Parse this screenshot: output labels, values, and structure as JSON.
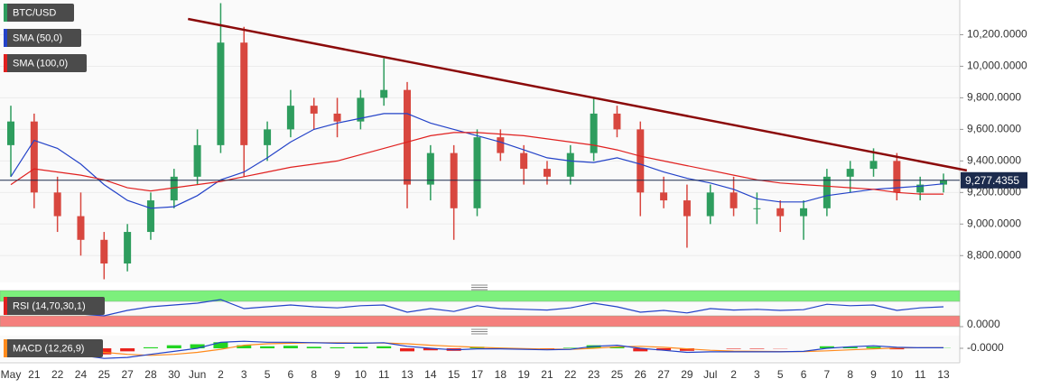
{
  "chart_data": [
    {
      "type": "candlestick",
      "name": "BTC/USD",
      "categories": [
        "May",
        "21",
        "22",
        "24",
        "25",
        "27",
        "28",
        "30",
        "Jun",
        "2",
        "3",
        "5",
        "6",
        "8",
        "9",
        "10",
        "11",
        "13",
        "14",
        "15",
        "17",
        "18",
        "19",
        "21",
        "22",
        "23",
        "25",
        "26",
        "27",
        "29",
        "Jul",
        "2",
        "3",
        "5",
        "6",
        "7",
        "8",
        "9",
        "10",
        "11",
        "13"
      ],
      "open": [
        9500,
        9650,
        9200,
        9050,
        8900,
        8750,
        8950,
        9150,
        9300,
        9500,
        10150,
        9500,
        9600,
        9750,
        9700,
        9650,
        9800,
        9850,
        9250,
        9450,
        9100,
        9550,
        9450,
        9350,
        9300,
        9450,
        9700,
        9600,
        9200,
        9150,
        9050,
        9200,
        9100,
        9100,
        9050,
        9100,
        9300,
        9350,
        9400,
        9200,
        9250
      ],
      "high": [
        9750,
        9700,
        9300,
        9200,
        8950,
        9000,
        9200,
        9350,
        9600,
        10400,
        10250,
        9650,
        9850,
        9800,
        9800,
        9850,
        10050,
        9900,
        9500,
        9500,
        9600,
        9600,
        9500,
        9400,
        9500,
        9800,
        9750,
        9650,
        9300,
        9250,
        9250,
        9300,
        9200,
        9150,
        9150,
        9350,
        9400,
        9480,
        9450,
        9300,
        9320
      ],
      "low": [
        9300,
        9100,
        8950,
        8800,
        8650,
        8700,
        8900,
        9100,
        9250,
        9450,
        9300,
        9400,
        9550,
        9600,
        9550,
        9600,
        9750,
        9100,
        9150,
        8900,
        9050,
        9400,
        9250,
        9250,
        9250,
        9400,
        9550,
        9050,
        9100,
        8850,
        9000,
        9050,
        9000,
        8950,
        8900,
        9050,
        9200,
        9300,
        9150,
        9150,
        9200
      ],
      "close": [
        9650,
        9200,
        9050,
        8900,
        8750,
        8950,
        9150,
        9300,
        9500,
        10150,
        9500,
        9600,
        9750,
        9700,
        9650,
        9800,
        9850,
        9250,
        9450,
        9100,
        9550,
        9450,
        9350,
        9300,
        9450,
        9700,
        9600,
        9200,
        9150,
        9050,
        9200,
        9100,
        9100,
        9050,
        9100,
        9300,
        9350,
        9400,
        9200,
        9250,
        9277
      ],
      "up_color": "#2e9d5e",
      "down_color": "#d8473f",
      "series": [
        {
          "name": "SMA (50,0)",
          "color": "#2342c8",
          "values": [
            9300,
            9530,
            9480,
            9380,
            9250,
            9150,
            9100,
            9110,
            9180,
            9280,
            9330,
            9420,
            9520,
            9600,
            9640,
            9670,
            9700,
            9700,
            9640,
            9600,
            9560,
            9520,
            9470,
            9420,
            9400,
            9390,
            9420,
            9380,
            9330,
            9290,
            9260,
            9220,
            9160,
            9140,
            9140,
            9180,
            9200,
            9220,
            9230,
            9240,
            9255
          ]
        },
        {
          "name": "SMA (100,0)",
          "color": "#e0201f",
          "values": [
            9250,
            9350,
            9330,
            9310,
            9280,
            9230,
            9210,
            9230,
            9250,
            9270,
            9300,
            9330,
            9360,
            9380,
            9400,
            9440,
            9480,
            9520,
            9560,
            9580,
            9580,
            9570,
            9560,
            9540,
            9520,
            9500,
            9470,
            9430,
            9400,
            9370,
            9340,
            9310,
            9280,
            9260,
            9250,
            9240,
            9230,
            9220,
            9200,
            9190,
            9190
          ]
        }
      ],
      "trendline": {
        "color": "#8b0a0a",
        "x": [
          7.6,
          41
        ],
        "values": [
          10300,
          9340
        ]
      },
      "last_price": {
        "value": 9277.4355,
        "label": "9,277.4355"
      },
      "ylim": [
        8630,
        10420
      ],
      "yticks": [
        {
          "value": 8800,
          "label": "8,800.0000"
        },
        {
          "value": 9000,
          "label": "9,000.0000"
        },
        {
          "value": 9200,
          "label": "9,200.0000"
        },
        {
          "value": 9400,
          "label": "9,400.0000"
        },
        {
          "value": 9600,
          "label": "9,600.0000"
        },
        {
          "value": 9800,
          "label": "9,800.0000"
        },
        {
          "value": 10000,
          "label": "10,000.0000"
        },
        {
          "value": 10200,
          "label": "10,200.0000"
        }
      ],
      "grid": true
    },
    {
      "type": "rsi",
      "name": "RSI (14,70,30,1)",
      "color": "#2342c8",
      "values": [
        55,
        40,
        38,
        35,
        30,
        45,
        55,
        60,
        65,
        75,
        50,
        55,
        60,
        55,
        52,
        58,
        60,
        40,
        50,
        42,
        58,
        50,
        48,
        46,
        52,
        65,
        55,
        40,
        45,
        38,
        50,
        46,
        48,
        45,
        47,
        62,
        58,
        60,
        45,
        52,
        55
      ],
      "bands": [
        {
          "from": 70,
          "to": 100,
          "color": "#7cf07c"
        },
        {
          "from": 0,
          "to": 30,
          "color": "#f4807d"
        }
      ],
      "ylim": [
        0,
        100
      ],
      "yticks": [
        {
          "value": 0,
          "label": "0.0000"
        }
      ]
    },
    {
      "type": "macd",
      "name": "MACD (12,26,9)",
      "histogram": [
        -40,
        -60,
        -80,
        -100,
        -120,
        -60,
        20,
        60,
        80,
        120,
        60,
        40,
        50,
        30,
        20,
        30,
        40,
        -60,
        -40,
        -50,
        30,
        10,
        0,
        -10,
        10,
        60,
        30,
        -60,
        -40,
        -50,
        0,
        -10,
        -10,
        -5,
        0,
        40,
        30,
        30,
        -20,
        0,
        5
      ],
      "up_color": "#22d422",
      "down_color": "#e8211c",
      "macd": {
        "color": "#2342c8",
        "values": [
          80,
          20,
          -60,
          -140,
          -200,
          -180,
          -120,
          -60,
          0,
          120,
          140,
          120,
          120,
          110,
          100,
          100,
          110,
          40,
          0,
          -30,
          -10,
          -10,
          -20,
          -30,
          -20,
          40,
          60,
          0,
          -40,
          -80,
          -70,
          -70,
          -70,
          -70,
          -60,
          0,
          30,
          50,
          20,
          10,
          10
        ]
      },
      "signal": {
        "color": "#ff8a1c",
        "values": [
          60,
          40,
          10,
          -40,
          -80,
          -120,
          -140,
          -120,
          -80,
          -20,
          60,
          90,
          100,
          110,
          110,
          105,
          105,
          90,
          60,
          40,
          20,
          5,
          -5,
          -15,
          -20,
          0,
          30,
          40,
          20,
          -10,
          -40,
          -55,
          -60,
          -65,
          -65,
          -50,
          -30,
          -10,
          5,
          10,
          10
        ]
      },
      "ylim": [
        -250,
        250
      ],
      "yticks": [
        {
          "value": 0,
          "label": "-0.0000"
        }
      ]
    }
  ]
}
